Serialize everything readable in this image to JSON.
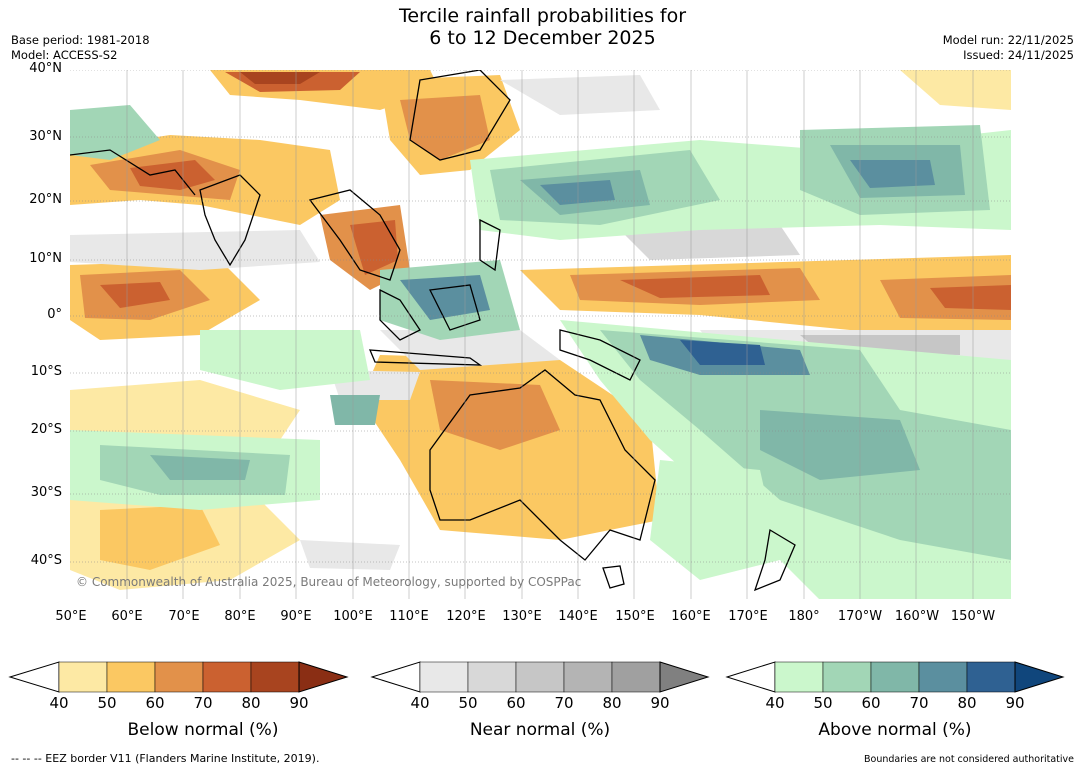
{
  "title": {
    "line1": "Tercile rainfall probabilities for",
    "line2": "6 to 12 December 2025"
  },
  "meta": {
    "base_period": "Base period: 1981-2018",
    "model": "Model: ACCESS-S2",
    "model_run": "Model run: 22/11/2025",
    "issued": "Issued: 24/11/2025"
  },
  "map": {
    "lat_labels": [
      "40°N",
      "30°N",
      "20°N",
      "10°N",
      "0°",
      "10°S",
      "20°S",
      "30°S",
      "40°S"
    ],
    "lon_labels": [
      "50°E",
      "60°E",
      "70°E",
      "80°E",
      "90°E",
      "100°E",
      "110°E",
      "120°E",
      "130°E",
      "140°E",
      "150°E",
      "160°E",
      "170°E",
      "180°",
      "170°W",
      "160°W",
      "150°W"
    ],
    "copyright": "© Commonwealth of Australia 2025, Bureau of Meteorology, supported by COSPPac"
  },
  "colorbars": [
    {
      "title": "Below normal (%)",
      "ticks": [
        "40",
        "50",
        "60",
        "70",
        "80",
        "90"
      ],
      "colors": [
        "#fde9a4",
        "#fbc862",
        "#e2914a",
        "#cb6130",
        "#a8441f",
        "#8a2e14"
      ]
    },
    {
      "title": "Near normal (%)",
      "ticks": [
        "40",
        "50",
        "60",
        "70",
        "80",
        "90"
      ],
      "colors": [
        "#e8e8e8",
        "#d8d8d8",
        "#c6c6c6",
        "#b4b4b4",
        "#a0a0a0",
        "#808080"
      ]
    },
    {
      "title": "Above normal (%)",
      "ticks": [
        "40",
        "50",
        "60",
        "70",
        "80",
        "90"
      ],
      "colors": [
        "#cbf7cc",
        "#a2d6b6",
        "#80b7a8",
        "#5b8f9f",
        "#2f6192",
        "#10467c"
      ]
    }
  ],
  "footer": {
    "eez": "--  --  -- EEZ border V11 (Flanders Marine Institute, 2019).",
    "disclaimer": "Boundaries are not considered authoritative"
  }
}
